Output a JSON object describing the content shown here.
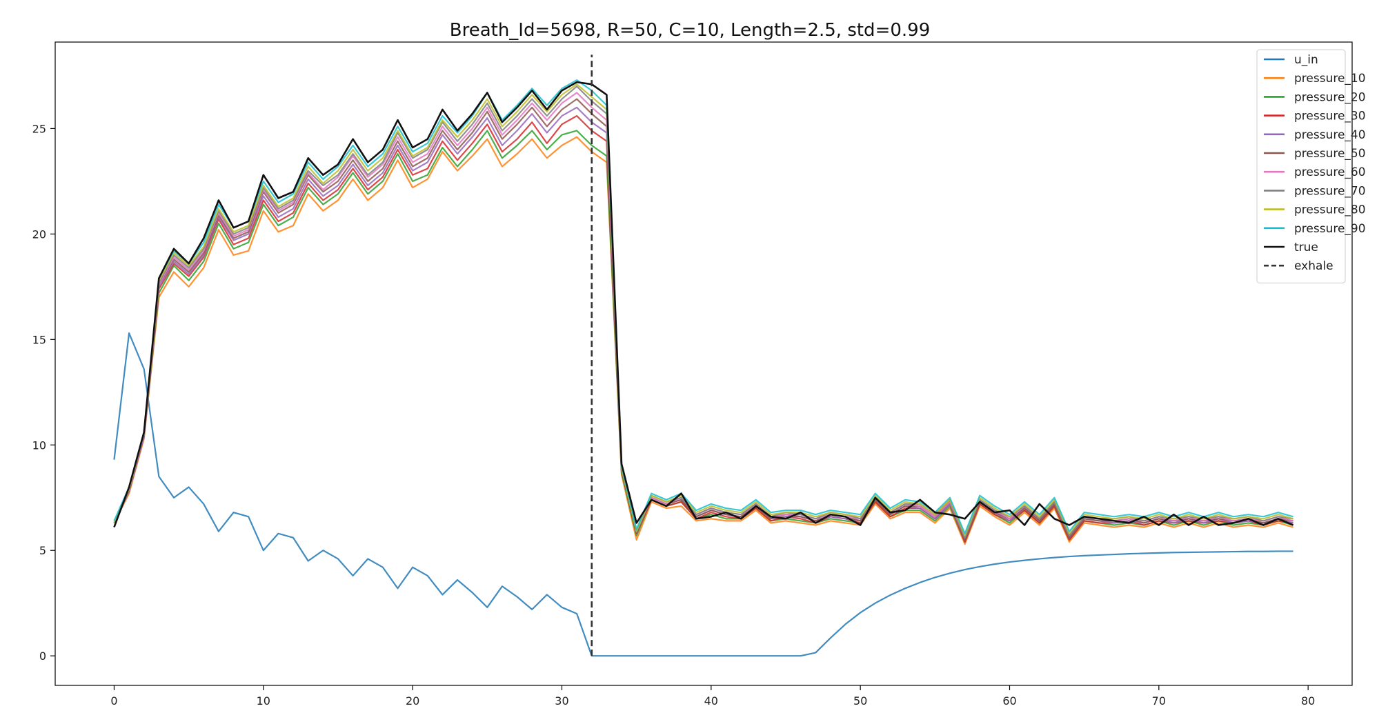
{
  "chart_data": {
    "type": "line",
    "title": "Breath_Id=5698, R=50, C=10, Length=2.5, std=0.99",
    "xlabel": "",
    "ylabel": "",
    "xlim": [
      -3.95,
      82.95
    ],
    "ylim": [
      -1.4,
      29.1
    ],
    "xticks": [
      0,
      10,
      20,
      30,
      40,
      50,
      60,
      70,
      80
    ],
    "yticks": [
      0,
      5,
      10,
      15,
      20,
      25
    ],
    "grid": false,
    "legend_position": "top-right",
    "exhale": {
      "name": "exhale",
      "x": 32,
      "y_range": [
        0,
        28.5
      ],
      "color": "#333333"
    },
    "series": [
      {
        "name": "u_in",
        "color": "#1f77b4",
        "values": [
          9.3,
          15.3,
          13.6,
          8.5,
          7.5,
          8.0,
          7.2,
          5.9,
          6.8,
          6.6,
          5.0,
          5.8,
          5.6,
          4.5,
          5.0,
          4.6,
          3.8,
          4.6,
          4.2,
          3.2,
          4.2,
          3.8,
          2.9,
          3.6,
          3.0,
          2.3,
          3.3,
          2.8,
          2.2,
          2.9,
          2.3,
          2.0,
          0,
          0,
          0,
          0,
          0,
          0,
          0,
          0,
          0,
          0,
          0,
          0,
          0,
          0,
          0,
          0.15,
          0.85,
          1.5,
          2.05,
          2.5,
          2.88,
          3.2,
          3.48,
          3.72,
          3.92,
          4.09,
          4.23,
          4.35,
          4.45,
          4.53,
          4.6,
          4.66,
          4.71,
          4.75,
          4.78,
          4.81,
          4.84,
          4.86,
          4.88,
          4.9,
          4.91,
          4.92,
          4.93,
          4.94,
          4.95,
          4.95,
          4.96,
          4.96
        ]
      },
      {
        "name": "pressure_10",
        "color": "#ff7f0e",
        "values": [
          6.3,
          7.7,
          10.3,
          17.0,
          18.2,
          17.5,
          18.4,
          20.2,
          19.0,
          19.2,
          21.1,
          20.1,
          20.4,
          21.9,
          21.1,
          21.6,
          22.6,
          21.6,
          22.2,
          23.5,
          22.2,
          22.6,
          23.9,
          23.0,
          23.7,
          24.5,
          23.2,
          23.8,
          24.5,
          23.6,
          24.2,
          24.6,
          23.9,
          23.4,
          8.6,
          5.5,
          7.3,
          7.0,
          7.1,
          6.4,
          6.5,
          6.4,
          6.4,
          6.9,
          6.3,
          6.4,
          6.3,
          6.2,
          6.4,
          6.3,
          6.2,
          7.2,
          6.5,
          6.8,
          6.8,
          6.3,
          7.0,
          5.3,
          7.1,
          6.6,
          6.2,
          6.8,
          6.2,
          7.0,
          5.4,
          6.3,
          6.2,
          6.1,
          6.2,
          6.1,
          6.3,
          6.1,
          6.3,
          6.1,
          6.3,
          6.1,
          6.2,
          6.1,
          6.3,
          6.1
        ]
      },
      {
        "name": "pressure_20",
        "color": "#2ca02c",
        "values": [
          6.3,
          7.8,
          10.4,
          17.2,
          18.5,
          17.8,
          18.7,
          20.5,
          19.3,
          19.6,
          21.4,
          20.4,
          20.8,
          22.2,
          21.4,
          21.9,
          22.9,
          21.9,
          22.5,
          23.8,
          22.5,
          22.8,
          24.1,
          23.2,
          24.0,
          24.9,
          23.6,
          24.2,
          24.9,
          24.0,
          24.7,
          24.9,
          24.2,
          23.7,
          8.7,
          5.7,
          7.4,
          7.1,
          7.3,
          6.5,
          6.7,
          6.5,
          6.5,
          7.0,
          6.4,
          6.5,
          6.4,
          6.3,
          6.5,
          6.4,
          6.3,
          7.3,
          6.6,
          6.9,
          6.9,
          6.4,
          7.1,
          5.4,
          7.2,
          6.7,
          6.3,
          6.9,
          6.3,
          7.1,
          5.5,
          6.4,
          6.3,
          6.2,
          6.3,
          6.2,
          6.4,
          6.2,
          6.4,
          6.2,
          6.4,
          6.2,
          6.3,
          6.2,
          6.4,
          6.2
        ]
      },
      {
        "name": "pressure_30",
        "color": "#d62728",
        "values": [
          6.3,
          7.8,
          10.4,
          17.4,
          18.6,
          18.0,
          18.9,
          20.7,
          19.5,
          19.8,
          21.6,
          20.6,
          21.0,
          22.4,
          21.6,
          22.1,
          23.1,
          22.1,
          22.7,
          24.0,
          22.8,
          23.1,
          24.4,
          23.5,
          24.3,
          25.2,
          23.9,
          24.5,
          25.3,
          24.3,
          25.2,
          25.6,
          24.9,
          24.4,
          8.8,
          5.8,
          7.4,
          7.1,
          7.3,
          6.5,
          6.8,
          6.6,
          6.5,
          7.0,
          6.4,
          6.6,
          6.5,
          6.3,
          6.6,
          6.5,
          6.3,
          7.3,
          6.6,
          7.0,
          7.0,
          6.5,
          7.2,
          5.4,
          7.2,
          6.7,
          6.4,
          6.9,
          6.3,
          7.1,
          5.5,
          6.4,
          6.3,
          6.3,
          6.4,
          6.2,
          6.4,
          6.3,
          6.4,
          6.3,
          6.4,
          6.3,
          6.4,
          6.2,
          6.4,
          6.3
        ]
      },
      {
        "name": "pressure_40",
        "color": "#9467bd",
        "values": [
          6.3,
          7.8,
          10.4,
          17.5,
          18.7,
          18.1,
          19.0,
          20.8,
          19.7,
          20.0,
          21.8,
          20.8,
          21.2,
          22.6,
          21.8,
          22.3,
          23.3,
          22.3,
          22.9,
          24.2,
          23.0,
          23.4,
          24.7,
          23.8,
          24.6,
          25.5,
          24.2,
          24.9,
          25.7,
          24.8,
          25.6,
          26.0,
          25.3,
          24.8,
          8.8,
          5.8,
          7.5,
          7.2,
          7.4,
          6.6,
          6.9,
          6.7,
          6.6,
          7.1,
          6.5,
          6.6,
          6.6,
          6.4,
          6.6,
          6.5,
          6.4,
          7.4,
          6.7,
          7.1,
          7.0,
          6.5,
          7.2,
          5.5,
          7.3,
          6.8,
          6.4,
          7.0,
          6.4,
          7.2,
          5.6,
          6.5,
          6.4,
          6.3,
          6.4,
          6.3,
          6.5,
          6.3,
          6.5,
          6.3,
          6.5,
          6.3,
          6.4,
          6.3,
          6.5,
          6.3
        ]
      },
      {
        "name": "pressure_50",
        "color": "#8c564b",
        "values": [
          6.3,
          7.9,
          10.5,
          17.6,
          18.8,
          18.2,
          19.1,
          20.9,
          19.8,
          20.1,
          22.0,
          21.0,
          21.4,
          22.8,
          22.0,
          22.5,
          23.5,
          22.5,
          23.1,
          24.4,
          23.2,
          23.6,
          24.9,
          24.0,
          24.8,
          25.8,
          24.5,
          25.2,
          26.0,
          25.1,
          25.9,
          26.4,
          25.7,
          25.1,
          8.8,
          5.8,
          7.5,
          7.2,
          7.4,
          6.6,
          6.9,
          6.7,
          6.6,
          7.1,
          6.5,
          6.7,
          6.6,
          6.4,
          6.7,
          6.6,
          6.4,
          7.4,
          6.7,
          7.1,
          7.1,
          6.6,
          7.3,
          5.5,
          7.3,
          6.8,
          6.5,
          7.0,
          6.4,
          7.2,
          5.6,
          6.5,
          6.4,
          6.4,
          6.5,
          6.3,
          6.5,
          6.4,
          6.5,
          6.4,
          6.5,
          6.4,
          6.5,
          6.3,
          6.5,
          6.4
        ]
      },
      {
        "name": "pressure_60",
        "color": "#e377c2",
        "values": [
          6.3,
          7.9,
          10.5,
          17.6,
          18.9,
          18.3,
          19.2,
          21.0,
          19.9,
          20.2,
          22.1,
          21.1,
          21.5,
          22.9,
          22.1,
          22.7,
          23.7,
          22.7,
          23.3,
          24.6,
          23.4,
          23.8,
          25.1,
          24.2,
          25.0,
          26.0,
          24.7,
          25.4,
          26.2,
          25.4,
          26.2,
          26.7,
          26.0,
          25.4,
          8.9,
          5.9,
          7.5,
          7.2,
          7.5,
          6.7,
          7.0,
          6.8,
          6.7,
          7.2,
          6.6,
          6.7,
          6.7,
          6.5,
          6.7,
          6.6,
          6.5,
          7.5,
          6.8,
          7.2,
          7.1,
          6.6,
          7.3,
          5.6,
          7.4,
          6.9,
          6.5,
          7.1,
          6.5,
          7.3,
          5.7,
          6.6,
          6.5,
          6.4,
          6.5,
          6.4,
          6.6,
          6.4,
          6.6,
          6.4,
          6.6,
          6.4,
          6.5,
          6.4,
          6.6,
          6.4
        ]
      },
      {
        "name": "pressure_70",
        "color": "#7f7f7f",
        "values": [
          6.3,
          7.9,
          10.5,
          17.7,
          19.0,
          18.4,
          19.3,
          21.1,
          20.0,
          20.3,
          22.2,
          21.2,
          21.6,
          23.0,
          22.3,
          22.8,
          23.8,
          22.8,
          23.4,
          24.8,
          23.6,
          24.0,
          25.3,
          24.4,
          25.2,
          26.2,
          24.9,
          25.6,
          26.4,
          25.6,
          26.4,
          27.0,
          26.3,
          25.7,
          8.9,
          5.9,
          7.6,
          7.3,
          7.5,
          6.7,
          7.0,
          6.8,
          6.7,
          7.2,
          6.6,
          6.8,
          6.7,
          6.5,
          6.8,
          6.7,
          6.5,
          7.5,
          6.8,
          7.2,
          7.2,
          6.7,
          7.4,
          5.6,
          7.4,
          6.9,
          6.6,
          7.1,
          6.5,
          7.3,
          5.7,
          6.6,
          6.5,
          6.5,
          6.6,
          6.4,
          6.6,
          6.5,
          6.6,
          6.5,
          6.6,
          6.5,
          6.6,
          6.4,
          6.6,
          6.5
        ]
      },
      {
        "name": "pressure_80",
        "color": "#bcbd22",
        "values": [
          6.3,
          7.9,
          10.6,
          17.8,
          19.1,
          18.5,
          19.4,
          21.2,
          20.1,
          20.4,
          22.3,
          21.3,
          21.7,
          23.2,
          22.4,
          23.0,
          24.0,
          23.0,
          23.6,
          24.9,
          23.7,
          24.1,
          25.4,
          24.6,
          25.4,
          26.4,
          25.1,
          25.8,
          26.6,
          25.8,
          26.6,
          27.1,
          26.5,
          25.9,
          8.9,
          5.9,
          7.6,
          7.3,
          7.6,
          6.8,
          7.1,
          6.9,
          6.8,
          7.3,
          6.7,
          6.8,
          6.8,
          6.6,
          6.8,
          6.7,
          6.6,
          7.6,
          6.9,
          7.3,
          7.2,
          6.7,
          7.4,
          5.7,
          7.5,
          7.0,
          6.6,
          7.2,
          6.6,
          7.4,
          5.8,
          6.7,
          6.6,
          6.5,
          6.6,
          6.5,
          6.7,
          6.5,
          6.7,
          6.5,
          6.7,
          6.5,
          6.6,
          6.5,
          6.7,
          6.5
        ]
      },
      {
        "name": "pressure_90",
        "color": "#17becf",
        "values": [
          6.4,
          8.0,
          10.6,
          17.9,
          19.2,
          18.6,
          19.6,
          21.4,
          20.3,
          20.6,
          22.5,
          21.5,
          21.9,
          23.4,
          22.6,
          23.2,
          24.2,
          23.2,
          23.8,
          25.1,
          23.9,
          24.3,
          25.6,
          24.8,
          25.6,
          26.7,
          25.4,
          26.1,
          26.9,
          26.1,
          26.9,
          27.3,
          26.8,
          26.1,
          9.0,
          6.0,
          7.7,
          7.4,
          7.7,
          6.9,
          7.2,
          7.0,
          6.9,
          7.4,
          6.8,
          6.9,
          6.9,
          6.7,
          6.9,
          6.8,
          6.7,
          7.7,
          7.0,
          7.4,
          7.3,
          6.8,
          7.5,
          5.8,
          7.6,
          7.1,
          6.7,
          7.3,
          6.7,
          7.5,
          5.9,
          6.8,
          6.7,
          6.6,
          6.7,
          6.6,
          6.8,
          6.6,
          6.8,
          6.6,
          6.8,
          6.6,
          6.7,
          6.6,
          6.8,
          6.6
        ]
      },
      {
        "name": "true",
        "color": "#111111",
        "values": [
          6.1,
          8.0,
          10.6,
          17.9,
          19.3,
          18.6,
          19.8,
          21.6,
          20.3,
          20.6,
          22.8,
          21.7,
          22.0,
          23.6,
          22.8,
          23.3,
          24.5,
          23.4,
          24.0,
          25.4,
          24.1,
          24.5,
          25.9,
          24.9,
          25.7,
          26.7,
          25.3,
          26.0,
          26.8,
          25.9,
          26.8,
          27.2,
          27.1,
          26.6,
          9.1,
          6.3,
          7.4,
          7.1,
          7.7,
          6.5,
          6.6,
          6.8,
          6.5,
          7.1,
          6.6,
          6.5,
          6.8,
          6.3,
          6.7,
          6.6,
          6.2,
          7.5,
          6.8,
          6.9,
          7.4,
          6.8,
          6.7,
          6.5,
          7.3,
          6.8,
          6.9,
          6.2,
          7.2,
          6.5,
          6.2,
          6.6,
          6.5,
          6.4,
          6.3,
          6.6,
          6.2,
          6.7,
          6.2,
          6.6,
          6.2,
          6.3,
          6.5,
          6.2,
          6.5,
          6.2
        ]
      }
    ]
  }
}
